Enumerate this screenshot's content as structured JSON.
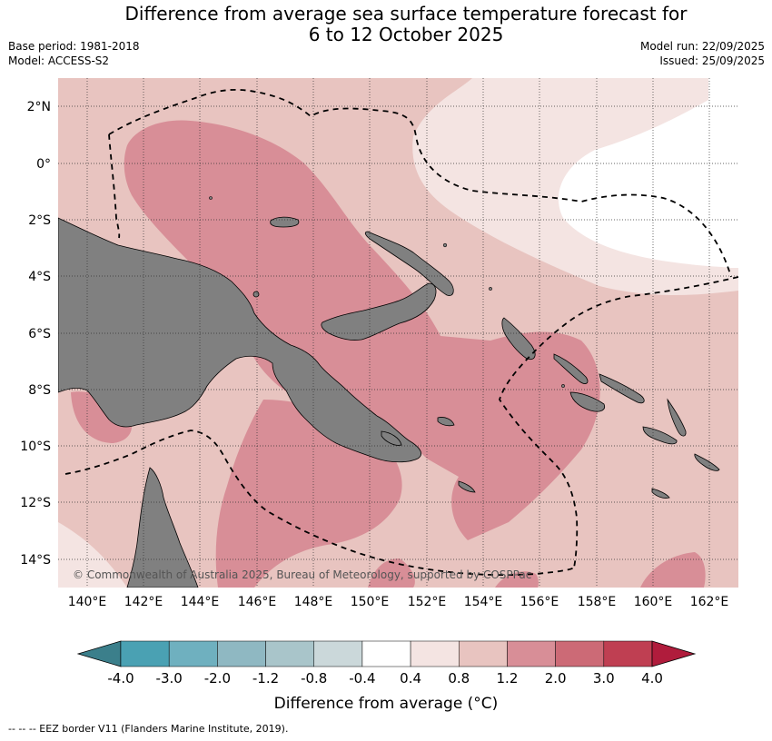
{
  "header": {
    "title_line1": "Difference from average sea surface temperature forecast for",
    "title_line2": "6 to 12 October 2025",
    "base_period": "Base period: 1981-2018",
    "model": "Model: ACCESS-S2",
    "model_run": "Model run: 22/09/2025",
    "issued": "Issued: 25/09/2025"
  },
  "map": {
    "lat_labels": [
      "2°N",
      "0°",
      "2°S",
      "4°S",
      "6°S",
      "8°S",
      "10°S",
      "12°S",
      "14°S"
    ],
    "lon_labels": [
      "140°E",
      "142°E",
      "144°E",
      "146°E",
      "148°E",
      "150°E",
      "152°E",
      "154°E",
      "156°E",
      "158°E",
      "160°E",
      "162°E"
    ],
    "copyright": "© Commonwealth of Australia 2025, Bureau of Meteorology, supported by COSPPac",
    "land_color": "#808080",
    "eez_line_color": "#000000"
  },
  "colorbar": {
    "labels": [
      "-4.0",
      "-3.0",
      "-2.0",
      "-1.2",
      "-0.8",
      "-0.4",
      "0.4",
      "0.8",
      "1.2",
      "2.0",
      "3.0",
      "4.0"
    ],
    "colors": [
      "#3b7f8b",
      "#4aa1b3",
      "#6fb0bf",
      "#8fb8c2",
      "#a9c5ca",
      "#cbd8da",
      "#ffffff",
      "#f4e4e2",
      "#e8c4c0",
      "#d88e97",
      "#cc6a76",
      "#bf3f52",
      "#b01c3c"
    ],
    "title": "Difference from average (°C)"
  },
  "footer": {
    "legend": "-- -- -- EEZ border V11 (Flanders Marine Institute, 2019)."
  }
}
